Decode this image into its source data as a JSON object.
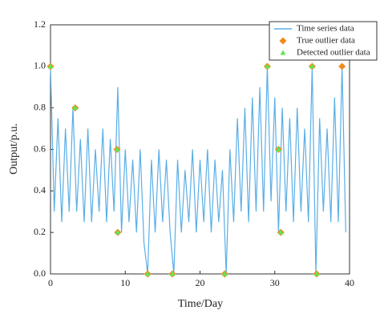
{
  "chart_data": {
    "type": "line",
    "xlabel": "Time/Day",
    "ylabel": "Output/p.u.",
    "xlim": [
      0,
      40
    ],
    "xticks": [
      0,
      10,
      20,
      30,
      40
    ],
    "ylim": [
      0,
      1.2
    ],
    "yticks": [
      {
        "value": 0,
        "label": "0.0"
      },
      {
        "value": 0.2,
        "label": "0.2"
      },
      {
        "value": 0.4,
        "label": "0.4"
      },
      {
        "value": 0.6,
        "label": "0.6"
      },
      {
        "value": 0.8,
        "label": "0.8"
      },
      {
        "value": 1.0,
        "label": "1.0"
      },
      {
        "value": 1.2,
        "label": "1.2"
      }
    ],
    "legend": "upper right",
    "series": [
      {
        "name": "Time series data",
        "type": "line",
        "color": "#5aaee6",
        "x": [
          0,
          0.5,
          1,
          1.5,
          2,
          2.5,
          3,
          3.5,
          4,
          4.5,
          5,
          5.5,
          6,
          6.5,
          7,
          7.5,
          8,
          8.5,
          9,
          9.5,
          10,
          10.5,
          11,
          11.5,
          12,
          12.5,
          13,
          13.5,
          14,
          14.5,
          15,
          15.5,
          16,
          16.5,
          17,
          17.5,
          18,
          18.5,
          19,
          19.5,
          20,
          20.5,
          21,
          21.5,
          22,
          22.5,
          23,
          23.5,
          24,
          24.5,
          25,
          25.5,
          26,
          26.5,
          27,
          27.5,
          28,
          28.5,
          29,
          29.5,
          30,
          30.5,
          31,
          31.5,
          32,
          32.5,
          33,
          33.5,
          34,
          34.5,
          35,
          35.5,
          36,
          36.5,
          37,
          37.5,
          38,
          38.5,
          39,
          39.5
        ],
        "values": [
          1.0,
          0.3,
          0.75,
          0.25,
          0.7,
          0.3,
          0.8,
          0.3,
          0.65,
          0.25,
          0.7,
          0.25,
          0.6,
          0.3,
          0.7,
          0.25,
          0.65,
          0.3,
          0.9,
          0.2,
          0.6,
          0.25,
          0.55,
          0.2,
          0.6,
          0.15,
          0.0,
          0.55,
          0.2,
          0.6,
          0.25,
          0.55,
          0.2,
          0.0,
          0.55,
          0.2,
          0.5,
          0.25,
          0.6,
          0.2,
          0.55,
          0.25,
          0.6,
          0.2,
          0.55,
          0.25,
          0.5,
          0.0,
          0.6,
          0.25,
          0.75,
          0.3,
          0.8,
          0.25,
          0.85,
          0.3,
          0.9,
          0.3,
          1.0,
          0.35,
          0.85,
          0.2,
          0.8,
          0.3,
          0.75,
          0.25,
          0.8,
          0.3,
          0.7,
          0.25,
          1.0,
          0.0,
          0.75,
          0.3,
          0.7,
          0.25,
          0.85,
          0.25,
          1.0,
          0.2
        ]
      },
      {
        "name": "True outlier data",
        "type": "scatter",
        "marker": "diamond",
        "color": "#f28a1c",
        "x": [
          0,
          3.3,
          8.9,
          9,
          13,
          16.3,
          23.3,
          29,
          30.5,
          30.8,
          35,
          35.6,
          39
        ],
        "values": [
          1.0,
          0.8,
          0.6,
          0.2,
          0,
          0,
          0,
          1.0,
          0.6,
          0.2,
          1.0,
          0,
          1.0
        ]
      },
      {
        "name": "Detected outlier data",
        "type": "scatter",
        "marker": "triangle",
        "color": "#5ee65a",
        "x": [
          0,
          3.3,
          8.9,
          9,
          13,
          16.3,
          23.3,
          29,
          30.5,
          30.8,
          35,
          35.6
        ],
        "values": [
          1.0,
          0.8,
          0.6,
          0.2,
          0,
          0,
          0,
          1.0,
          0.6,
          0.2,
          1.0,
          0
        ]
      }
    ]
  }
}
